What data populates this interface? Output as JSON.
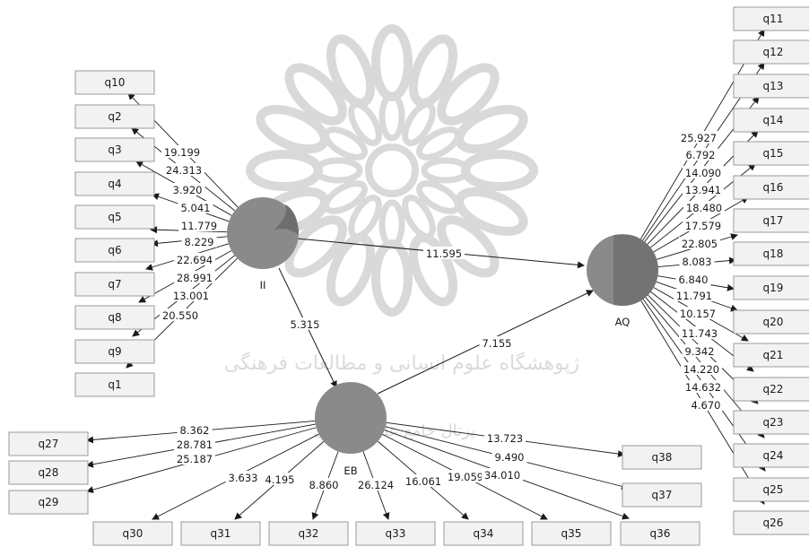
{
  "watermark": {
    "line1": "ژپوهشگاه علوم انسانی و مطالعات فرهنگی",
    "line2": "پرتال جامع علوم انسانی"
  },
  "constructs": [
    {
      "id": "II",
      "label": "II",
      "fill": "#8a8a8a"
    },
    {
      "id": "EB",
      "label": "EB",
      "fill": "#8a8a8a"
    },
    {
      "id": "AQ",
      "label": "AQ",
      "fill": "#8a8a8a"
    }
  ],
  "paths": [
    {
      "from": "II",
      "to": "AQ",
      "value": "11.595"
    },
    {
      "from": "II",
      "to": "EB",
      "value": "5.315"
    },
    {
      "from": "EB",
      "to": "AQ",
      "value": "7.155"
    }
  ],
  "indicators": {
    "II": [
      {
        "name": "q10",
        "value": "19.199"
      },
      {
        "name": "q2",
        "value": "24.313"
      },
      {
        "name": "q3",
        "value": "3.920"
      },
      {
        "name": "q4",
        "value": "5.041"
      },
      {
        "name": "q5",
        "value": "11.779"
      },
      {
        "name": "q6",
        "value": "8.229"
      },
      {
        "name": "q7",
        "value": "22.694"
      },
      {
        "name": "q8",
        "value": "28.991"
      },
      {
        "name": "q9",
        "value": "13.001"
      },
      {
        "name": "q1",
        "value": "20.550"
      }
    ],
    "AQ": [
      {
        "name": "q11",
        "value": "25.927"
      },
      {
        "name": "q12",
        "value": "6.792"
      },
      {
        "name": "q13",
        "value": "14.090"
      },
      {
        "name": "q14",
        "value": "13.941"
      },
      {
        "name": "q15",
        "value": "18.480"
      },
      {
        "name": "q16",
        "value": "17.579"
      },
      {
        "name": "q17",
        "value": "22.805"
      },
      {
        "name": "q18",
        "value": "8.083"
      },
      {
        "name": "q19",
        "value": "6.840"
      },
      {
        "name": "q20",
        "value": "11.791"
      },
      {
        "name": "q21",
        "value": "10.157"
      },
      {
        "name": "q22",
        "value": "11.743"
      },
      {
        "name": "q23",
        "value": "9.342"
      },
      {
        "name": "q24",
        "value": "14.220"
      },
      {
        "name": "q25",
        "value": "14.632"
      },
      {
        "name": "q26",
        "value": "4.670"
      }
    ],
    "EB": [
      {
        "name": "q27",
        "value": "8.362"
      },
      {
        "name": "q28",
        "value": "28.781"
      },
      {
        "name": "q29",
        "value": "25.187"
      },
      {
        "name": "q30",
        "value": "3.633"
      },
      {
        "name": "q31",
        "value": "4.195"
      },
      {
        "name": "q32",
        "value": "8.860"
      },
      {
        "name": "q33",
        "value": "26.124"
      },
      {
        "name": "q34",
        "value": "16.061"
      },
      {
        "name": "q35",
        "value": "19.059"
      },
      {
        "name": "q36",
        "value": "34.010"
      },
      {
        "name": "q37",
        "value": "9.490"
      },
      {
        "name": "q38",
        "value": "13.723"
      }
    ]
  }
}
